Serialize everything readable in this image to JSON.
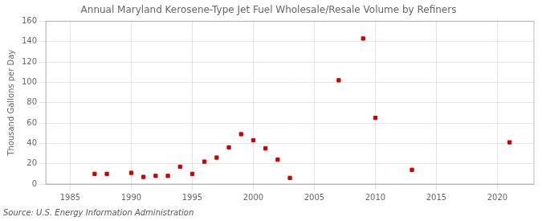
{
  "chart_data": {
    "type": "scatter",
    "title": "Annual Maryland Kerosene-Type Jet Fuel Wholesale/Resale Volume by Refiners",
    "ylabel": "Thousand Gallons per Day",
    "annotations": [
      "Source: U.S. Energy Information Administration"
    ],
    "x": [
      1987,
      1988,
      1990,
      1991,
      1992,
      1993,
      1994,
      1995,
      1996,
      1997,
      1998,
      1999,
      2000,
      2001,
      2002,
      2003,
      2007,
      2009,
      2010,
      2013,
      2021
    ],
    "values": [
      10,
      10,
      11,
      7,
      8,
      8,
      17,
      10,
      22,
      26,
      36,
      49,
      43,
      35,
      24,
      6,
      102,
      143,
      65,
      14,
      41
    ],
    "color": "#cc0000",
    "marker": "square",
    "xlim": [
      1983,
      2023
    ],
    "xticks": [
      1985,
      1990,
      1995,
      2000,
      2005,
      2010,
      2015,
      2020
    ],
    "ylim": [
      0,
      160
    ],
    "yticks": [
      0,
      20,
      40,
      60,
      80,
      100,
      120,
      140,
      160
    ],
    "grid": true
  }
}
